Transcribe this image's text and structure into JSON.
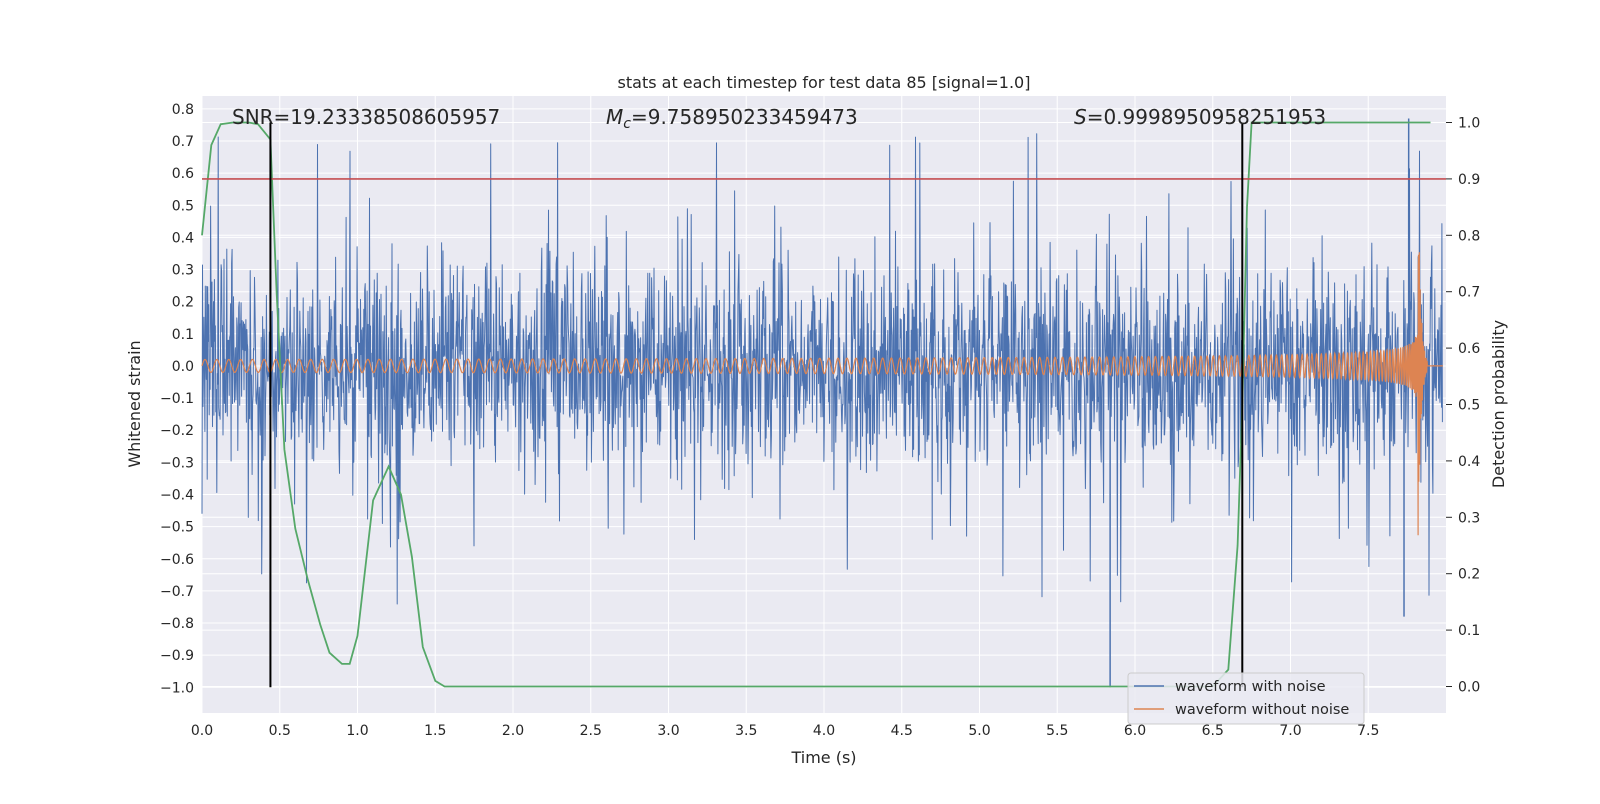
{
  "chart_data": {
    "type": "line",
    "title": "stats at each timestep for test data 85 [signal=1.0]",
    "xlabel": "Time (s)",
    "ylabel": "Whitened strain",
    "ylabel_right": "Detection probability",
    "xlim": [
      0.0,
      8.0
    ],
    "ylim": [
      -1.08,
      0.84
    ],
    "ylim_right": [
      -0.047,
      1.047
    ],
    "x_ticks": [
      "0.0",
      "0.5",
      "1.0",
      "1.5",
      "2.0",
      "2.5",
      "3.0",
      "3.5",
      "4.0",
      "4.5",
      "5.0",
      "5.5",
      "6.0",
      "6.5",
      "7.0",
      "7.5"
    ],
    "y_ticks": [
      "0.8",
      "0.7",
      "0.6",
      "0.5",
      "0.4",
      "0.3",
      "0.2",
      "0.1",
      "0.0",
      "−0.1",
      "−0.2",
      "−0.3",
      "−0.4",
      "−0.5",
      "−0.6",
      "−0.7",
      "−0.8",
      "−0.9",
      "−1.0"
    ],
    "y_ticks_right": [
      "1.0",
      "0.9",
      "0.8",
      "0.7",
      "0.6",
      "0.5",
      "0.4",
      "0.3",
      "0.2",
      "0.1",
      "0.0"
    ],
    "annotations": {
      "snr": "SNR=19.23338508605957",
      "mc_symbol": "M",
      "mc_sub": "c",
      "mc_value": "=9.758950233459473",
      "s_symbol": "S",
      "s_value": "=0.9998950958251953"
    },
    "threshold_line": {
      "y_right": 0.9,
      "color": "#c44e52"
    },
    "vertical_markers": [
      0.44,
      6.69
    ],
    "legend": {
      "position": "lower-right",
      "entries": [
        "waveform with noise",
        "waveform without noise"
      ]
    },
    "series": [
      {
        "name": "waveform with noise",
        "color": "#4c72b0",
        "axis": "left",
        "description": "whitened noisy strain, amplitude ~±0.5 with spikes to 0.78 / −1.0"
      },
      {
        "name": "waveform without noise",
        "color": "#dd8452",
        "axis": "left",
        "description": "chirp signal, amplitude grows from 0.02 to 0.44 near t=7.8 s, then ringdown"
      },
      {
        "name": "detection probability",
        "color": "#55a868",
        "axis": "right",
        "x": [
          0.0,
          0.06,
          0.12,
          0.2,
          0.3,
          0.36,
          0.44,
          0.48,
          0.53,
          0.6,
          0.68,
          0.76,
          0.82,
          0.9,
          0.95,
          1.0,
          1.1,
          1.2,
          1.28,
          1.35,
          1.42,
          1.5,
          1.56,
          1.65,
          2.0,
          4.0,
          6.0,
          6.5,
          6.6,
          6.66,
          6.69,
          6.72,
          6.75,
          6.9,
          7.5,
          7.9
        ],
        "values": [
          0.8,
          0.96,
          0.997,
          1.0,
          1.0,
          0.997,
          0.97,
          0.7,
          0.42,
          0.28,
          0.19,
          0.11,
          0.06,
          0.04,
          0.04,
          0.09,
          0.33,
          0.39,
          0.34,
          0.23,
          0.07,
          0.01,
          0.0,
          0.0,
          0.0,
          0.0,
          0.0,
          0.0,
          0.03,
          0.25,
          0.5,
          0.85,
          1.0,
          1.0,
          1.0,
          1.0
        ]
      }
    ]
  }
}
